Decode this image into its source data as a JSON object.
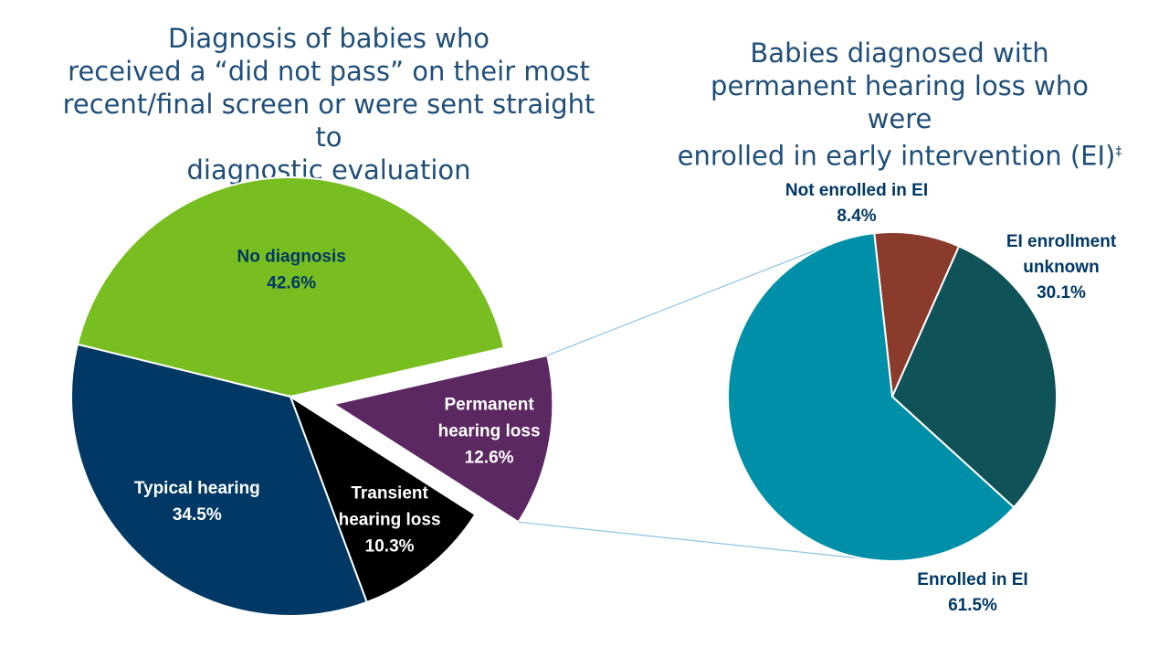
{
  "left_title": {
    "lines": [
      "Diagnosis of babies who",
      "received a “did not pass” on their most",
      "recent/final screen or were sent straight to",
      "diagnostic evaluation"
    ]
  },
  "right_title": {
    "lines": [
      "Babies diagnosed with",
      "permanent hearing loss who were",
      "enrolled in early intervention (EI)"
    ],
    "footnote_mark": "‡"
  },
  "chart_data": [
    {
      "type": "pie",
      "title": "Diagnosis of babies who received a “did not pass” on their most recent/final screen or were sent straight to diagnostic evaluation",
      "exploded": "Permanent hearing loss",
      "slices": [
        {
          "label": "No diagnosis",
          "label_lines": [
            "No diagnosis"
          ],
          "pct_text": "42.6%",
          "value": 42.6,
          "color": "#78be20",
          "text_color": "#003865"
        },
        {
          "label": "Permanent hearing loss",
          "label_lines": [
            "Permanent",
            "hearing loss"
          ],
          "pct_text": "12.6%",
          "value": 12.6,
          "color": "#5c2861",
          "text_color": "#ffffff"
        },
        {
          "label": "Transient hearing loss",
          "label_lines": [
            "Transient",
            "hearing loss"
          ],
          "pct_text": "10.3%",
          "value": 10.3,
          "color": "#000000",
          "text_color": "#ffffff"
        },
        {
          "label": "Typical hearing",
          "label_lines": [
            "Typical hearing"
          ],
          "pct_text": "34.5%",
          "value": 34.5,
          "color": "#003865",
          "text_color": "#ffffff"
        }
      ]
    },
    {
      "type": "pie",
      "title": "Babies diagnosed with permanent hearing loss who were enrolled in early intervention (EI)",
      "slices": [
        {
          "label": "Not enrolled in EI",
          "label_lines": [
            "Not enrolled in EI"
          ],
          "pct_text": "8.4%",
          "value": 8.4,
          "color": "#8a3b2b",
          "text_color": "#003865"
        },
        {
          "label": "EI enrollment unknown",
          "label_lines": [
            "EI enrollment",
            "unknown"
          ],
          "pct_text": "30.1%",
          "value": 30.1,
          "color": "#0f5257",
          "text_color": "#003865"
        },
        {
          "label": "Enrolled in EI",
          "label_lines": [
            "Enrolled in EI"
          ],
          "pct_text": "61.5%",
          "value": 61.5,
          "color": "#008fa8",
          "text_color": "#003865"
        }
      ]
    }
  ],
  "connector_color": "#8fc3e6"
}
